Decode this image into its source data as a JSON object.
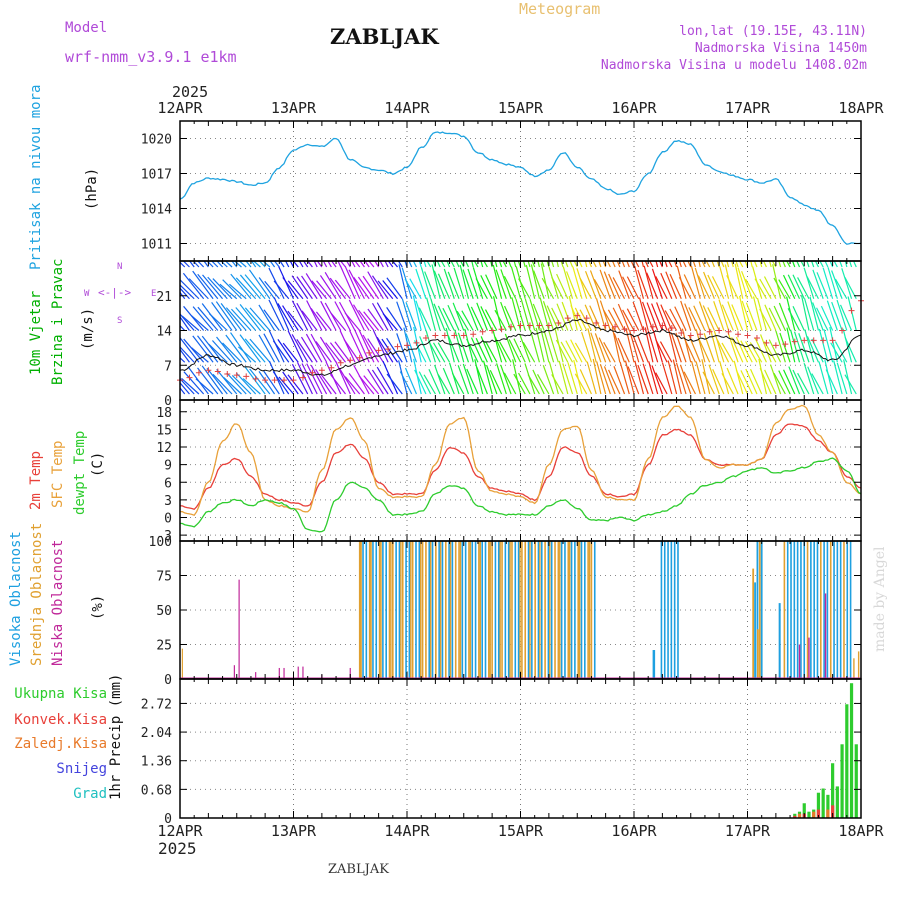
{
  "header": {
    "model_label": "Model",
    "model_name": "wrf-nmm_v3.9.1 e1km",
    "station": "ZABLJAK",
    "title": "Meteogram",
    "coords": "lon,lat (19.15E, 43.11N)",
    "elevation": "Nadmorska Visina 1450m",
    "model_elevation": "Nadmorska Visina u modelu 1408.02m",
    "year_top": "2025",
    "year_bottom": "2025",
    "footer_station": "ZABLJAK",
    "credit": "made by Angel"
  },
  "colors": {
    "pressure": "#1fa3e0",
    "temp2m": "#e8403a",
    "sfc": "#e8a13a",
    "dewpt": "#2ecc2e",
    "high_cloud": "#1ea0e0",
    "mid_cloud": "#e0a030",
    "low_cloud": "#c0289a",
    "total_rain": "#2ecc2e",
    "conv_rain": "#e8403a",
    "frz_rain": "#e87a2a",
    "snow": "#4444dd",
    "hail": "#20c0c0",
    "wind_label": "#00aa00",
    "wind_arrow_label": "#b04ad8"
  },
  "panels": {
    "pressure": {
      "title": "Pritisak na nivou mora",
      "unit": "(hPa)"
    },
    "wind": {
      "title1": "10m Vjetar",
      "title2": "Brzina i Pravac",
      "unit": "(m/s)"
    },
    "temp": {
      "title1": "2m Temp",
      "title2": "SFC Temp",
      "title3": "dewpt Temp",
      "unit": "(C)"
    },
    "cloud": {
      "title1": "Visoka Oblacnost",
      "title2": "Srednja Oblacnost",
      "title3": "Niska Oblacnost",
      "unit": "(%)"
    },
    "precip": {
      "title": "1hr Precip (mm)",
      "legend": [
        "Ukupna Kisa",
        "Konvek.Kisa",
        "Zaledj.Kisa",
        "Snijeg",
        "Grad"
      ]
    }
  },
  "compass": {
    "n": "N",
    "s": "S",
    "e": "E",
    "w": "W"
  },
  "chart_data": [
    {
      "type": "line",
      "name": "pressure",
      "ylim": [
        1009.5,
        1021.5
      ],
      "yticks": [
        "1011",
        "1014",
        "1017",
        "1020"
      ],
      "xticks": [
        "12APR",
        "13APR",
        "14APR",
        "15APR",
        "16APR",
        "17APR",
        "18APR"
      ],
      "x_hours": [
        0,
        3,
        6,
        9,
        12,
        15,
        18,
        21,
        24,
        27,
        30,
        33,
        36,
        39,
        42,
        45,
        48,
        51,
        54,
        57,
        60,
        63,
        66,
        69,
        72,
        75,
        78,
        81,
        84,
        87,
        90,
        93,
        96,
        99,
        102,
        105,
        108,
        111,
        114,
        117,
        120,
        123,
        126,
        129,
        132,
        135,
        138,
        141,
        144
      ],
      "series": [
        {
          "values": [
            1014.8,
            1016.2,
            1016.6,
            1016.5,
            1016.3,
            1016.0,
            1016.2,
            1017.5,
            1019.0,
            1019.5,
            1019.3,
            1020.0,
            1018.2,
            1017.5,
            1017.3,
            1017.0,
            1017.5,
            1019.2,
            1020.5,
            1020.5,
            1020.2,
            1018.8,
            1018.2,
            1017.8,
            1017.5,
            1016.8,
            1017.3,
            1018.8,
            1017.5,
            1016.5,
            1015.7,
            1015.2,
            1015.5,
            1017.0,
            1018.8,
            1019.8,
            1019.5,
            1017.8,
            1017.2,
            1016.8,
            1016.5,
            1016.2,
            1016.5,
            1015.0,
            1014.3,
            1013.8,
            1012.5,
            1011.0,
            1011.0
          ]
        }
      ]
    },
    {
      "type": "line",
      "name": "wind",
      "ylim": [
        0,
        28
      ],
      "yticks": [
        "0",
        "7",
        "14",
        "21"
      ],
      "xticks": [
        "12APR",
        "13APR",
        "14APR",
        "15APR",
        "16APR",
        "17APR",
        "18APR"
      ],
      "x_hours": [
        0,
        6,
        12,
        18,
        24,
        30,
        36,
        42,
        48,
        54,
        60,
        66,
        72,
        78,
        84,
        90,
        96,
        102,
        108,
        114,
        120,
        126,
        132,
        138,
        144
      ],
      "series": [
        {
          "name": "speed",
          "values": [
            6,
            9,
            7,
            6,
            6,
            5,
            7,
            9,
            10,
            12,
            11,
            12,
            13,
            14,
            16,
            14,
            13,
            14,
            12,
            13,
            11,
            9,
            10,
            8,
            13
          ]
        },
        {
          "name": "gust",
          "values": [
            4,
            6,
            5,
            4,
            4,
            6,
            8,
            10,
            11,
            13,
            13,
            14,
            15,
            15,
            17,
            15,
            14,
            15,
            13,
            14,
            13,
            11,
            12,
            12,
            20
          ]
        }
      ]
    },
    {
      "type": "line",
      "name": "temperature",
      "ylim": [
        -4,
        20
      ],
      "yticks": [
        "-3",
        "0",
        "3",
        "6",
        "9",
        "12",
        "15",
        "18"
      ],
      "xticks": [
        "12APR",
        "13APR",
        "14APR",
        "15APR",
        "16APR",
        "17APR",
        "18APR"
      ],
      "x_hours": [
        0,
        3,
        6,
        9,
        12,
        15,
        18,
        21,
        24,
        27,
        30,
        33,
        36,
        39,
        42,
        45,
        48,
        51,
        54,
        57,
        60,
        63,
        66,
        69,
        72,
        75,
        78,
        81,
        84,
        87,
        90,
        93,
        96,
        99,
        102,
        105,
        108,
        111,
        114,
        117,
        120,
        123,
        126,
        129,
        132,
        135,
        138,
        141,
        144
      ],
      "series": [
        {
          "name": "2m Temp",
          "values": [
            2,
            1.5,
            5,
            9,
            10,
            7,
            4,
            3,
            2.5,
            2,
            6,
            11,
            12.5,
            10,
            6,
            4,
            4,
            4,
            8,
            12,
            11,
            7,
            5,
            4.5,
            4,
            3,
            7,
            12,
            11,
            7,
            4,
            3.5,
            4,
            9,
            14,
            15,
            14,
            10,
            9,
            9,
            9,
            10,
            14,
            16,
            15.5,
            13,
            11,
            7,
            5
          ]
        },
        {
          "name": "SFC Temp",
          "values": [
            1,
            0.5,
            6,
            13,
            16,
            11,
            3,
            2,
            1.5,
            1,
            8,
            15,
            17,
            13,
            5,
            3.5,
            3.5,
            3.5,
            9,
            16,
            17,
            8,
            4.5,
            4,
            3.5,
            2.5,
            9,
            15,
            15.5,
            8,
            3.5,
            3,
            3,
            10,
            17,
            19,
            17,
            10,
            8.5,
            9,
            9,
            10,
            16,
            18.5,
            19,
            14,
            11,
            6,
            4
          ]
        },
        {
          "name": "dewpt Temp",
          "values": [
            -1,
            -1.5,
            1,
            2.5,
            3,
            2,
            3,
            2.5,
            1.5,
            -2,
            -2.5,
            3,
            6,
            5,
            3,
            0.5,
            0.5,
            1,
            4,
            5.5,
            5,
            2,
            1,
            0.5,
            0.5,
            0.5,
            2,
            3,
            1.5,
            -0.5,
            -0.5,
            0,
            -0.5,
            0.5,
            1,
            2,
            4,
            5.5,
            6,
            7,
            8,
            8.5,
            7.5,
            8,
            8.5,
            9.5,
            10,
            8,
            4
          ]
        }
      ]
    },
    {
      "type": "bar",
      "name": "cloudiness",
      "ylim": [
        0,
        100
      ],
      "yticks": [
        "0",
        "25",
        "50",
        "75",
        "100"
      ],
      "xticks": [
        "12APR",
        "13APR",
        "14APR",
        "15APR",
        "16APR",
        "17APR",
        "18APR"
      ]
    },
    {
      "type": "bar",
      "name": "precipitation",
      "ylim": [
        0,
        3.3
      ],
      "yticks": [
        "0",
        "0.68",
        "1.36",
        "2.04",
        "2.72"
      ],
      "xticks": [
        "12APR",
        "13APR",
        "14APR",
        "15APR",
        "16APR",
        "17APR",
        "18APR"
      ],
      "series": [
        {
          "name": "Ukupna Kisa",
          "hours": [
            130,
            131,
            132,
            133,
            134,
            135,
            136,
            137,
            138,
            139,
            140,
            141,
            142,
            143
          ],
          "values": [
            0.1,
            0.15,
            0.35,
            0.15,
            0.2,
            0.6,
            0.7,
            0.55,
            1.3,
            0.75,
            1.75,
            2.7,
            3.2,
            1.75
          ]
        },
        {
          "name": "Konvek.Kisa",
          "hours": [
            130,
            132,
            135,
            138
          ],
          "values": [
            0.05,
            0.1,
            0.2,
            0.3
          ]
        },
        {
          "name": "Zaledj.Kisa",
          "hours": [
            131,
            134,
            137
          ],
          "values": [
            0.1,
            0.15,
            0.2
          ]
        }
      ]
    }
  ]
}
